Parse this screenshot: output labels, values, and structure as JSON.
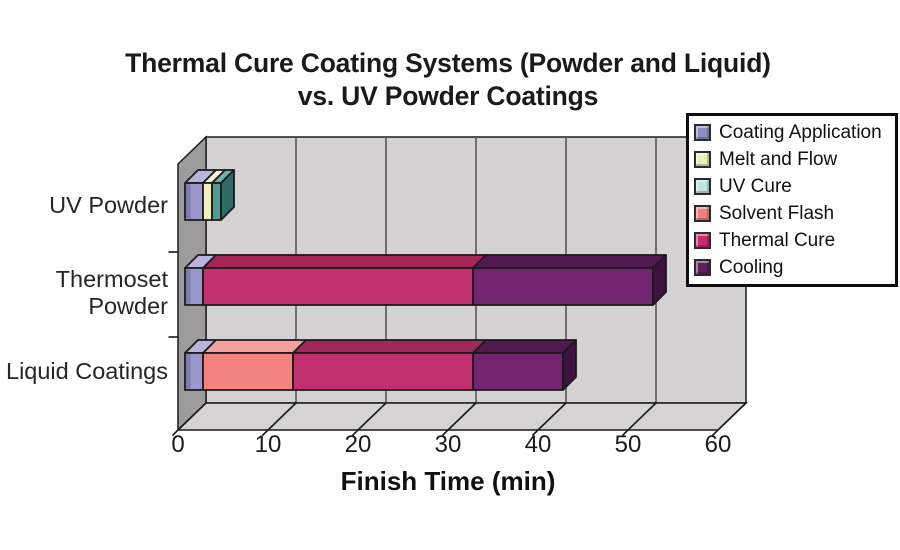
{
  "title": {
    "line1": "Thermal Cure Coating Systems (Powder and Liquid)",
    "line2": "vs. UV Powder Coatings"
  },
  "chart_data": {
    "type": "bar",
    "variant": "3d-horizontal-stacked",
    "units": "minutes",
    "categories": [
      "UV Powder",
      "Thermoset Powder",
      "Liquid Coatings"
    ],
    "series": [
      {
        "name": "Coating Application",
        "values": [
          2,
          2,
          2
        ],
        "front": "#9997CB",
        "top": "#B7B5DD",
        "side": "#6B69A0",
        "shade": "#7D7BAF",
        "swatch": "#8F8DC2"
      },
      {
        "name": "Melt and Flow",
        "values": [
          1,
          0,
          0
        ],
        "front": "#F0EEC2",
        "top": "#F7F5DC",
        "side": "#BDBA8A",
        "swatch": "#EDEBC0"
      },
      {
        "name": "UV Cure",
        "values": [
          1,
          0,
          0
        ],
        "front": "#4F9D95",
        "top": "#6FB0A8",
        "side": "#2F6B65",
        "swatch": "#C2E4E0"
      },
      {
        "name": "Solvent Flash",
        "values": [
          0,
          0,
          10
        ],
        "front": "#F4837F",
        "top": "#F7A09B",
        "side": "#C05E5C",
        "swatch": "#EF7F7D"
      },
      {
        "name": "Thermal Cure",
        "values": [
          0,
          30,
          20
        ],
        "front": "#C42F70",
        "top": "#A32659",
        "side": "#7E1D45",
        "swatch": "#C22E6B"
      },
      {
        "name": "Cooling",
        "values": [
          0,
          20,
          10
        ],
        "front": "#722471",
        "top": "#511A51",
        "side": "#3D123D",
        "swatch": "#5E1F5C"
      }
    ],
    "xlabel": "Finish Time (min)",
    "xlim": [
      0,
      60
    ],
    "xtick_interval": 10,
    "xticks": [
      "0",
      "10",
      "20",
      "30",
      "40",
      "50",
      "60"
    ],
    "legend_position": "top-right",
    "grid": true
  },
  "colors": {
    "background": "#FFFFFF",
    "wall_back": "#D4D2D2",
    "wall_left": "#9D9B9B",
    "floor": "#D5D3D3",
    "gridline": "#575555",
    "outline": "#1A1A1A",
    "text": "#1A1A1A",
    "legend_border": "#0D0D0D"
  }
}
